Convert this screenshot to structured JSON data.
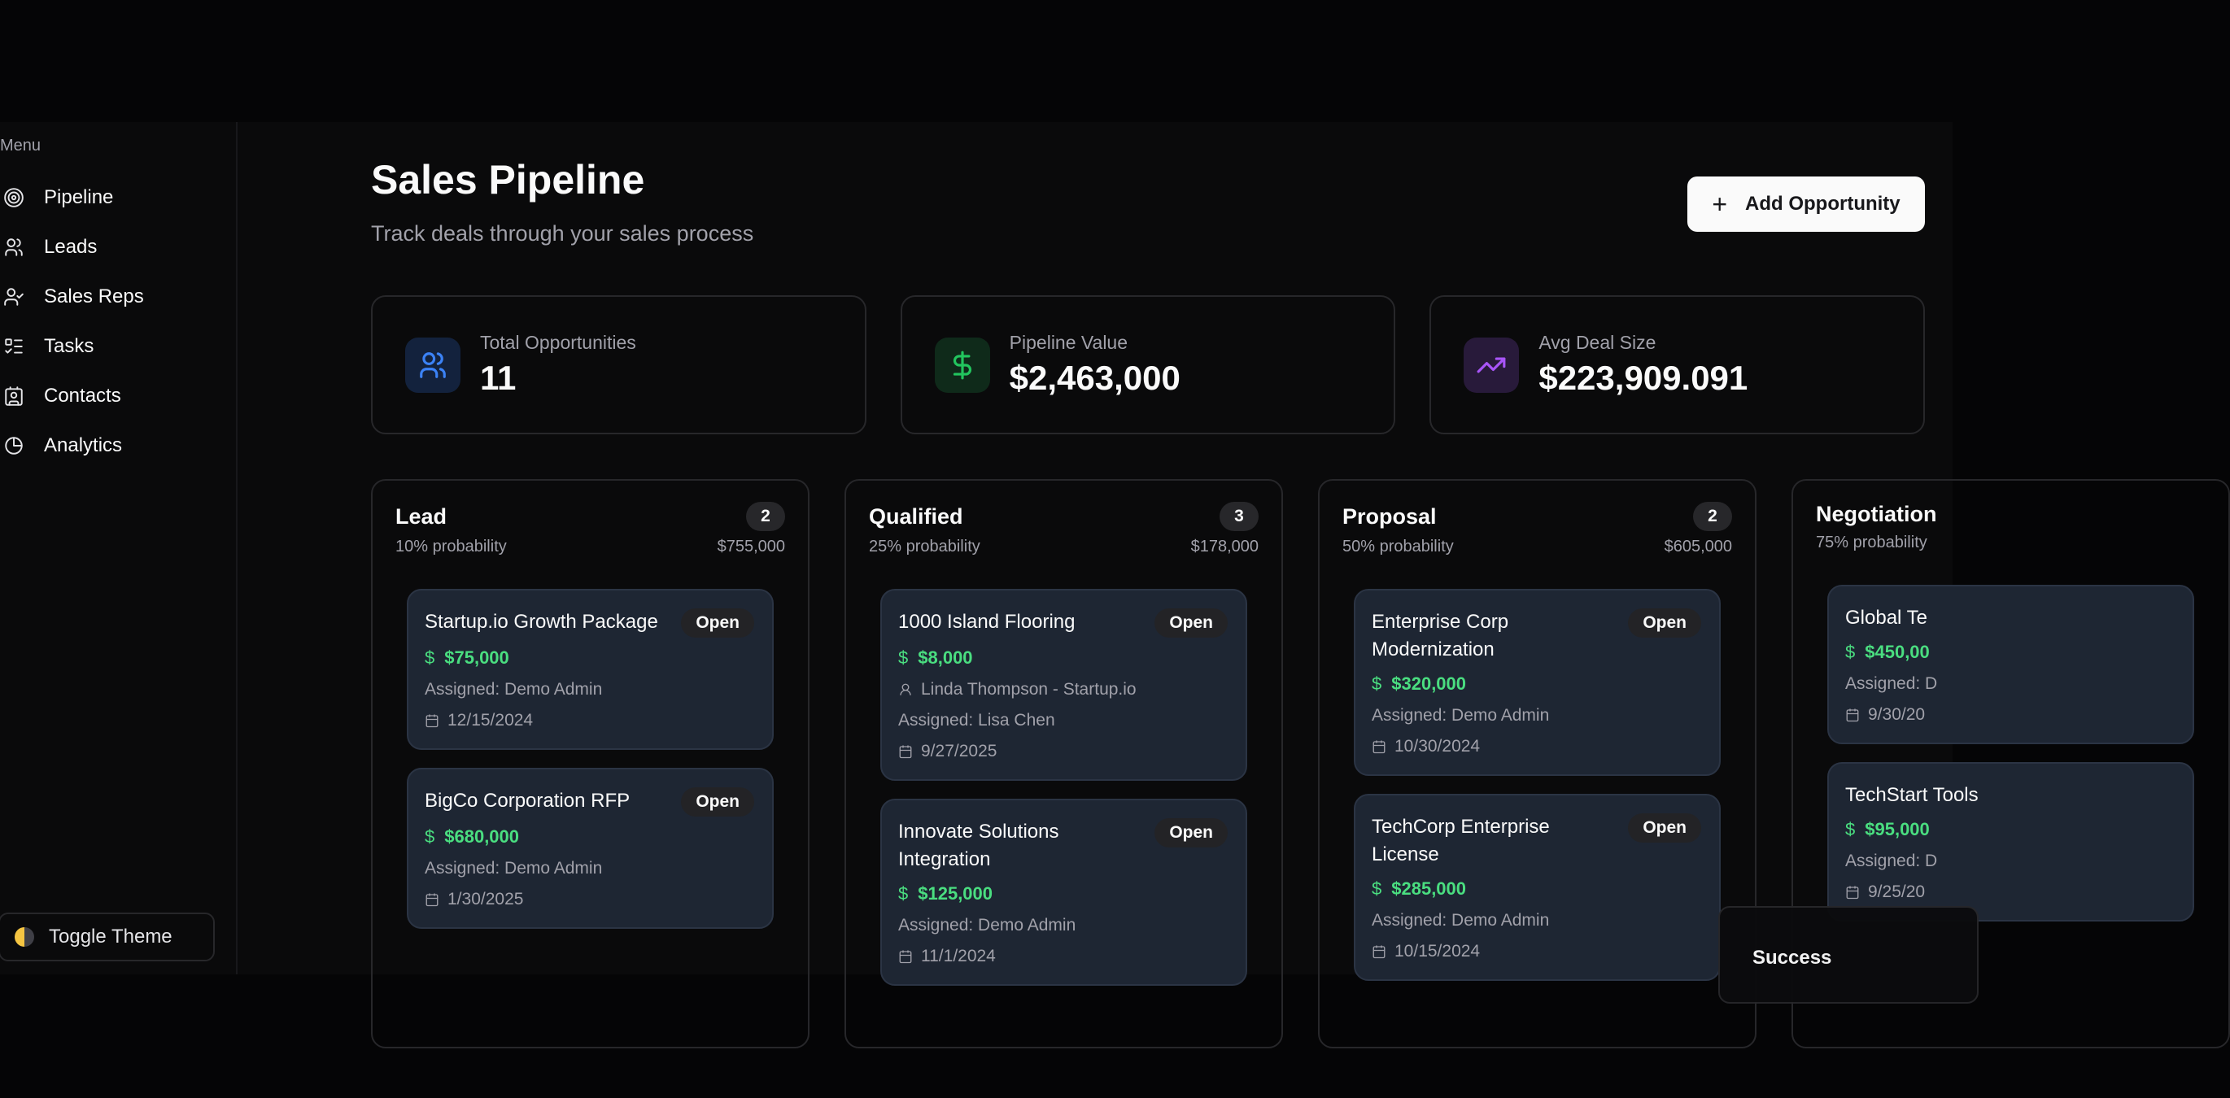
{
  "sidebar": {
    "menu_label": "Menu",
    "items": [
      {
        "label": "Pipeline",
        "icon": "target-icon"
      },
      {
        "label": "Leads",
        "icon": "users-icon"
      },
      {
        "label": "Sales Reps",
        "icon": "user-check-icon"
      },
      {
        "label": "Tasks",
        "icon": "list-checks-icon"
      },
      {
        "label": "Contacts",
        "icon": "contact-icon"
      },
      {
        "label": "Analytics",
        "icon": "pie-chart-icon"
      }
    ],
    "toggle_theme": "Toggle Theme"
  },
  "header": {
    "title": "Sales Pipeline",
    "subtitle": "Track deals through your sales process",
    "add_button": "Add Opportunity"
  },
  "stats": [
    {
      "label": "Total Opportunities",
      "value": "11",
      "icon": "users-icon",
      "color": "#3b82f6"
    },
    {
      "label": "Pipeline Value",
      "value": "$2,463,000",
      "icon": "dollar-icon",
      "color": "#22c55e"
    },
    {
      "label": "Avg Deal Size",
      "value": "$223,909.091",
      "icon": "trending-up-icon",
      "color": "#a855f7"
    }
  ],
  "columns": [
    {
      "name": "Lead",
      "count": "2",
      "probability": "10% probability",
      "total": "$755,000",
      "cards": [
        {
          "title": "Startup.io Growth Package",
          "status": "Open",
          "amount": "$75,000",
          "assigned": "Assigned: Demo Admin",
          "date": "12/15/2024"
        },
        {
          "title": "BigCo Corporation RFP",
          "status": "Open",
          "amount": "$680,000",
          "assigned": "Assigned: Demo Admin",
          "date": "1/30/2025"
        }
      ]
    },
    {
      "name": "Qualified",
      "count": "3",
      "probability": "25% probability",
      "total": "$178,000",
      "cards": [
        {
          "title": "1000 Island Flooring",
          "status": "Open",
          "amount": "$8,000",
          "contact": "Linda Thompson - Startup.io",
          "assigned": "Assigned: Lisa Chen",
          "date": "9/27/2025"
        },
        {
          "title": "Innovate Solutions Integration",
          "status": "Open",
          "amount": "$125,000",
          "assigned": "Assigned: Demo Admin",
          "date": "11/1/2024"
        }
      ]
    },
    {
      "name": "Proposal",
      "count": "2",
      "probability": "50% probability",
      "total": "$605,000",
      "cards": [
        {
          "title": "Enterprise Corp Modernization",
          "status": "Open",
          "amount": "$320,000",
          "assigned": "Assigned: Demo Admin",
          "date": "10/30/2024"
        },
        {
          "title": "TechCorp Enterprise License",
          "status": "Open",
          "amount": "$285,000",
          "assigned": "Assigned: Demo Admin",
          "date": "10/15/2024"
        }
      ]
    },
    {
      "name": "Negotiation",
      "count": "",
      "probability": "75% probability",
      "total": "",
      "cards": [
        {
          "title": "Global Te",
          "status": "",
          "amount": "$450,00",
          "assigned": "Assigned: D",
          "date": "9/30/20"
        },
        {
          "title": "TechStart Tools",
          "status": "",
          "amount": "$95,000",
          "assigned": "Assigned: D",
          "date": "9/25/20"
        }
      ]
    }
  ],
  "toast": {
    "message": "Success"
  }
}
